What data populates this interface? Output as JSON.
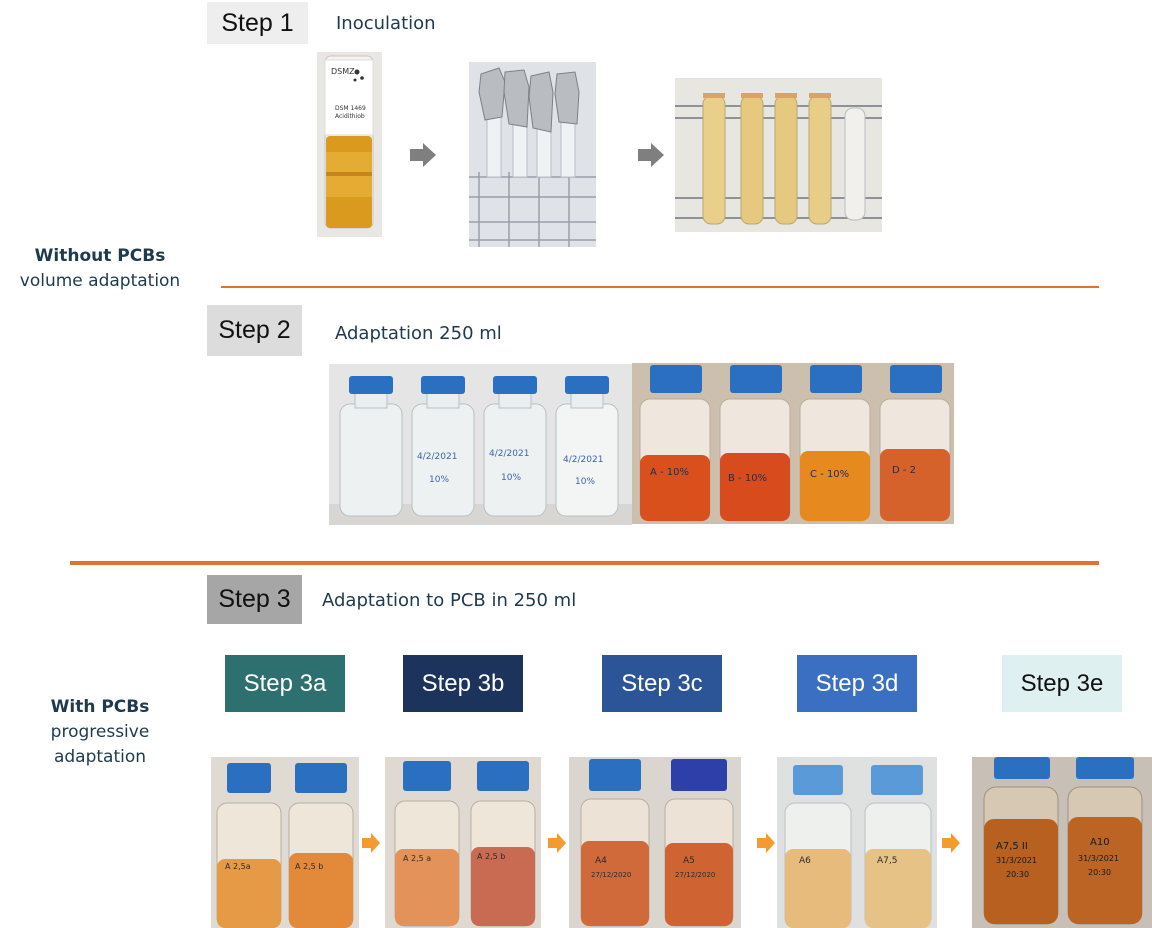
{
  "steps": {
    "step1": {
      "label": "Step 1",
      "description": "Inoculation"
    },
    "step2": {
      "label": "Step 2",
      "description": "Adaptation 250 ml"
    },
    "step3": {
      "label": "Step 3",
      "description": "Adaptation to PCB in 250 ml"
    }
  },
  "sections": {
    "without": {
      "title": "Without PCBs",
      "subtitle": "volume adaptation"
    },
    "with": {
      "title": "With PCBs",
      "subtitle_line1": "progressive",
      "subtitle_line2": "adaptation"
    }
  },
  "sub_steps": [
    {
      "label": "Step 3a",
      "bg": "#2e7070",
      "fg": "#ffffff"
    },
    {
      "label": "Step 3b",
      "bg": "#1c335c",
      "fg": "#ffffff"
    },
    {
      "label": "Step 3c",
      "bg": "#2b5597",
      "fg": "#ffffff"
    },
    {
      "label": "Step 3d",
      "bg": "#3a6fc2",
      "fg": "#ffffff"
    },
    {
      "label": "Step 3e",
      "bg": "#dff0f0",
      "fg": "#111111"
    }
  ],
  "photo_labels": {
    "tube_label": "DSMZ",
    "tube_sublabel_1": "DSM 1469",
    "tube_sublabel_2": "Acidithiob",
    "bottle_dates_step2": [
      "4/2/2021",
      "4/2/2021",
      "4/2/2021"
    ],
    "bottle_pct_step2": [
      "10%",
      "10%",
      "10%"
    ],
    "bottle_labels_step2b": [
      "A - 10%",
      "B - 10%",
      "C - 10%",
      "D - 2"
    ],
    "bottle_labels_3a": [
      "A 2,5a",
      "A 2,5 b"
    ],
    "bottle_labels_3b": [
      "A 2,5 a",
      "A 2,5 b"
    ],
    "bottle_labels_3c": [
      "A4",
      "A5"
    ],
    "bottle_labels_3d": [
      "A6",
      "A7,5"
    ],
    "bottle_labels_3e": [
      "A7,5 II",
      "A10"
    ],
    "bottle_dates_3c": [
      "27/12/2020",
      "27/12/2020"
    ],
    "bottle_dates_3e": [
      "31/3/2021",
      "31/3/2021"
    ],
    "bottle_times_3e": [
      "20:30",
      "20:30"
    ]
  },
  "colors": {
    "divider": "#e0742f",
    "arrow_gray": "#7f7f7f",
    "arrow_orange": "#f59a2c",
    "step_box_light": "#eeeeee",
    "step_box_mid": "#dcdcdc",
    "step_box_dark": "#a6a6a6",
    "cap_blue": "#2a6fc0"
  }
}
